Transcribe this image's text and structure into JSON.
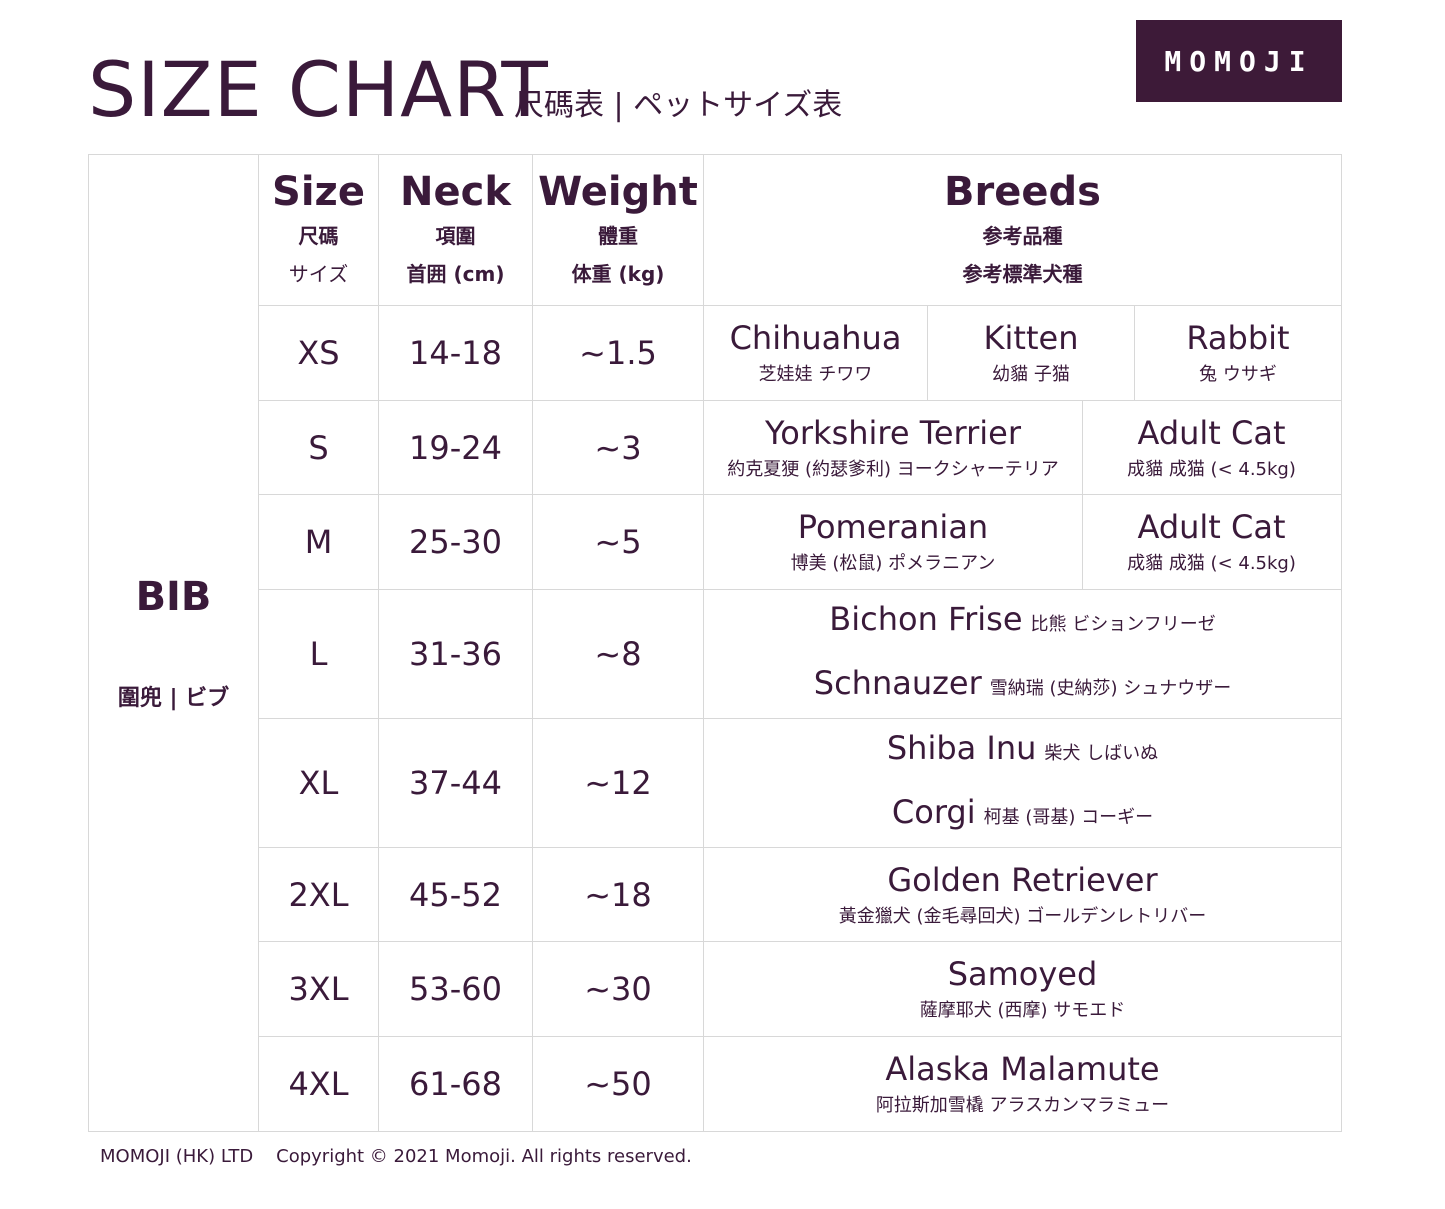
{
  "header": {
    "title": "SIZE CHART",
    "subtitle": "尺碼表 | ペットサイズ表",
    "logo": "MOMOJI",
    "brand_color": "#3d1a38"
  },
  "product": {
    "name": "BIB",
    "subtitle": "圍兜 | ビブ"
  },
  "columns": [
    {
      "label": "Size",
      "zh": "尺碼",
      "jp": "サイズ"
    },
    {
      "label": "Neck",
      "zh": "項圍",
      "jp": "首囲 (cm)"
    },
    {
      "label": "Weight",
      "zh": "體重",
      "jp": "体重 (kg)"
    },
    {
      "label": "Breeds",
      "zh": "参考品種",
      "jp": "参考標準犬種"
    }
  ],
  "rows": [
    {
      "size": "XS",
      "neck": "14-18",
      "weight": "~1.5",
      "breeds": [
        {
          "name": "Chihuahua",
          "sub": "芝娃娃 チワワ"
        },
        {
          "name": "Kitten",
          "sub": "幼貓 子猫"
        },
        {
          "name": "Rabbit",
          "sub": "兔 ウサギ"
        }
      ]
    },
    {
      "size": "S",
      "neck": "19-24",
      "weight": "~3",
      "breeds": [
        {
          "name": "Yorkshire Terrier",
          "sub": "約克夏㹴 (約瑟爹利) ヨークシャーテリア"
        },
        {
          "name": "Adult Cat",
          "sub": "成貓 成猫 (< 4.5kg)"
        }
      ]
    },
    {
      "size": "M",
      "neck": "25-30",
      "weight": "~5",
      "breeds": [
        {
          "name": "Pomeranian",
          "sub": "博美 (松鼠) ポメラニアン"
        },
        {
          "name": "Adult Cat",
          "sub": "成貓 成猫 (< 4.5kg)"
        }
      ]
    },
    {
      "size": "L",
      "neck": "31-36",
      "weight": "~8",
      "breeds": [
        {
          "name": "Bichon Frise",
          "sub": "比熊 ビションフリーゼ"
        },
        {
          "name": "Schnauzer",
          "sub": "雪納瑞 (史納莎) シュナウザー"
        }
      ]
    },
    {
      "size": "XL",
      "neck": "37-44",
      "weight": "~12",
      "breeds": [
        {
          "name": "Shiba Inu",
          "sub": "柴犬 しばいぬ"
        },
        {
          "name": "Corgi",
          "sub": "柯基 (哥基) コーギー"
        }
      ]
    },
    {
      "size": "2XL",
      "neck": "45-52",
      "weight": "~18",
      "breeds": [
        {
          "name": "Golden Retriever",
          "sub": "黃金獵犬 (金毛尋回犬) ゴールデンレトリバー"
        }
      ]
    },
    {
      "size": "3XL",
      "neck": "53-60",
      "weight": "~30",
      "breeds": [
        {
          "name": "Samoyed",
          "sub": "薩摩耶犬 (西摩) サモエド"
        }
      ]
    },
    {
      "size": "4XL",
      "neck": "61-68",
      "weight": "~50",
      "breeds": [
        {
          "name": "Alaska Malamute",
          "sub": "阿拉斯加雪橇 アラスカンマラミュー"
        }
      ]
    }
  ],
  "footer": "MOMOJI (HK) LTD    Copyright © 2021 Momoji. All rights reserved."
}
